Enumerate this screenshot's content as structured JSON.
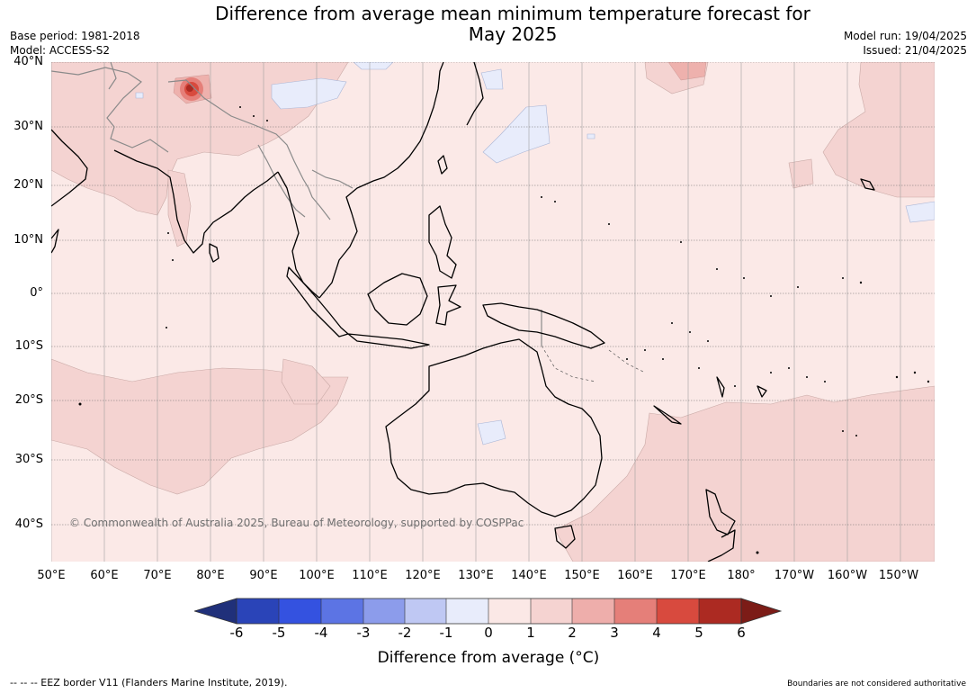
{
  "title": "Difference from average mean minimum temperature forecast for May 2025",
  "title_lines": [
    "Difference from average mean minimum temperature forecast for",
    "May 2025"
  ],
  "base_period": "Base period: 1981-2018",
  "model": "Model: ACCESS-S2",
  "model_run": "Model run: 19/04/2025",
  "issued": "Issued: 21/04/2025",
  "latitude_labels": [
    "40°N",
    "30°N",
    "20°N",
    "10°N",
    "0°",
    "10°S",
    "20°S",
    "30°S",
    "40°S"
  ],
  "longitude_labels": [
    "50°E",
    "60°E",
    "70°E",
    "80°E",
    "90°E",
    "100°E",
    "110°E",
    "120°E",
    "130°E",
    "140°E",
    "150°E",
    "160°E",
    "170°E",
    "180°",
    "170°W",
    "160°W",
    "150°W"
  ],
  "copyright": "© Commonwealth of Australia 2025, Bureau of Meteorology, supported by COSPPac",
  "colorbar": {
    "ticks": [
      "-6",
      "-5",
      "-4",
      "-3",
      "-2",
      "-1",
      "0",
      "1",
      "2",
      "3",
      "4",
      "5",
      "6"
    ],
    "label": "Difference from average (°C)",
    "colors": [
      "#20307a",
      "#2a44b8",
      "#3452e0",
      "#5c74e4",
      "#8c9ceb",
      "#bfc8f3",
      "#e8ecfb",
      "#fbe8e6",
      "#f5d3d1",
      "#eeaeab",
      "#e57f79",
      "#d84a3e",
      "#ac2a22",
      "#7c1c17"
    ]
  },
  "legend_eez": "--  --  -- EEZ border V11 (Flanders Marine Institute, 2019).",
  "boundaries_note": "Boundaries are not considered authoritative",
  "map_colors": {
    "background": "#fbe9e7",
    "warm_1_2": "#f4d3d1",
    "warm_2_3": "#eeb1ad",
    "warm_hot": "#c8302a",
    "cool_0_m1": "#e8ecfb"
  }
}
